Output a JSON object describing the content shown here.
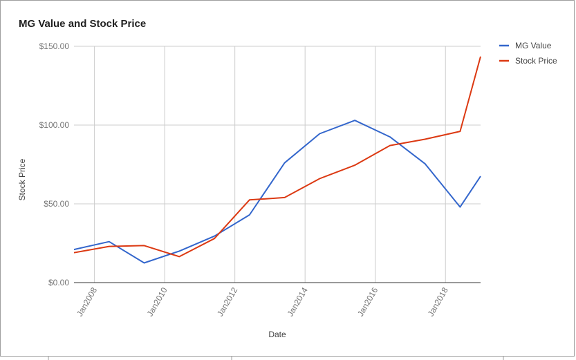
{
  "chart_data": {
    "type": "line",
    "title": "MG Value and Stock Price",
    "xlabel": "Date",
    "ylabel": "Stock Price",
    "ylim": [
      0,
      150
    ],
    "y_ticks": [
      "$0.00",
      "$50.00",
      "$100.00",
      "$150.00"
    ],
    "y_tick_values": [
      0,
      50,
      100,
      150
    ],
    "x_range": [
      "2007-06",
      "2019-01"
    ],
    "x_ticks": [
      "Jan2008",
      "Jan2010",
      "Jan2012",
      "Jan2014",
      "Jan2016",
      "Jan2018"
    ],
    "x_tick_years": [
      2008,
      2010,
      2012,
      2014,
      2016,
      2018
    ],
    "grid": true,
    "legend_position": "right",
    "series": [
      {
        "name": "MG Value",
        "color": "#3366cc",
        "points": [
          {
            "x": "2007-06",
            "y": 21
          },
          {
            "x": "2008-06",
            "y": 26
          },
          {
            "x": "2009-06",
            "y": 12.5
          },
          {
            "x": "2010-06",
            "y": 20
          },
          {
            "x": "2011-06",
            "y": 29.5
          },
          {
            "x": "2012-06",
            "y": 43
          },
          {
            "x": "2013-06",
            "y": 76
          },
          {
            "x": "2014-06",
            "y": 94.5
          },
          {
            "x": "2015-06",
            "y": 103
          },
          {
            "x": "2016-06",
            "y": 92.5
          },
          {
            "x": "2017-06",
            "y": 75.5
          },
          {
            "x": "2018-06",
            "y": 48
          },
          {
            "x": "2019-01",
            "y": 67.5
          }
        ]
      },
      {
        "name": "Stock Price",
        "color": "#dc3912",
        "points": [
          {
            "x": "2007-06",
            "y": 19
          },
          {
            "x": "2008-06",
            "y": 23
          },
          {
            "x": "2009-06",
            "y": 23.5
          },
          {
            "x": "2010-06",
            "y": 16.5
          },
          {
            "x": "2011-06",
            "y": 28
          },
          {
            "x": "2012-06",
            "y": 52.5
          },
          {
            "x": "2013-06",
            "y": 54
          },
          {
            "x": "2014-06",
            "y": 66
          },
          {
            "x": "2015-06",
            "y": 74.5
          },
          {
            "x": "2016-06",
            "y": 87
          },
          {
            "x": "2017-06",
            "y": 91
          },
          {
            "x": "2018-06",
            "y": 96
          },
          {
            "x": "2019-01",
            "y": 143.5
          }
        ]
      }
    ]
  }
}
